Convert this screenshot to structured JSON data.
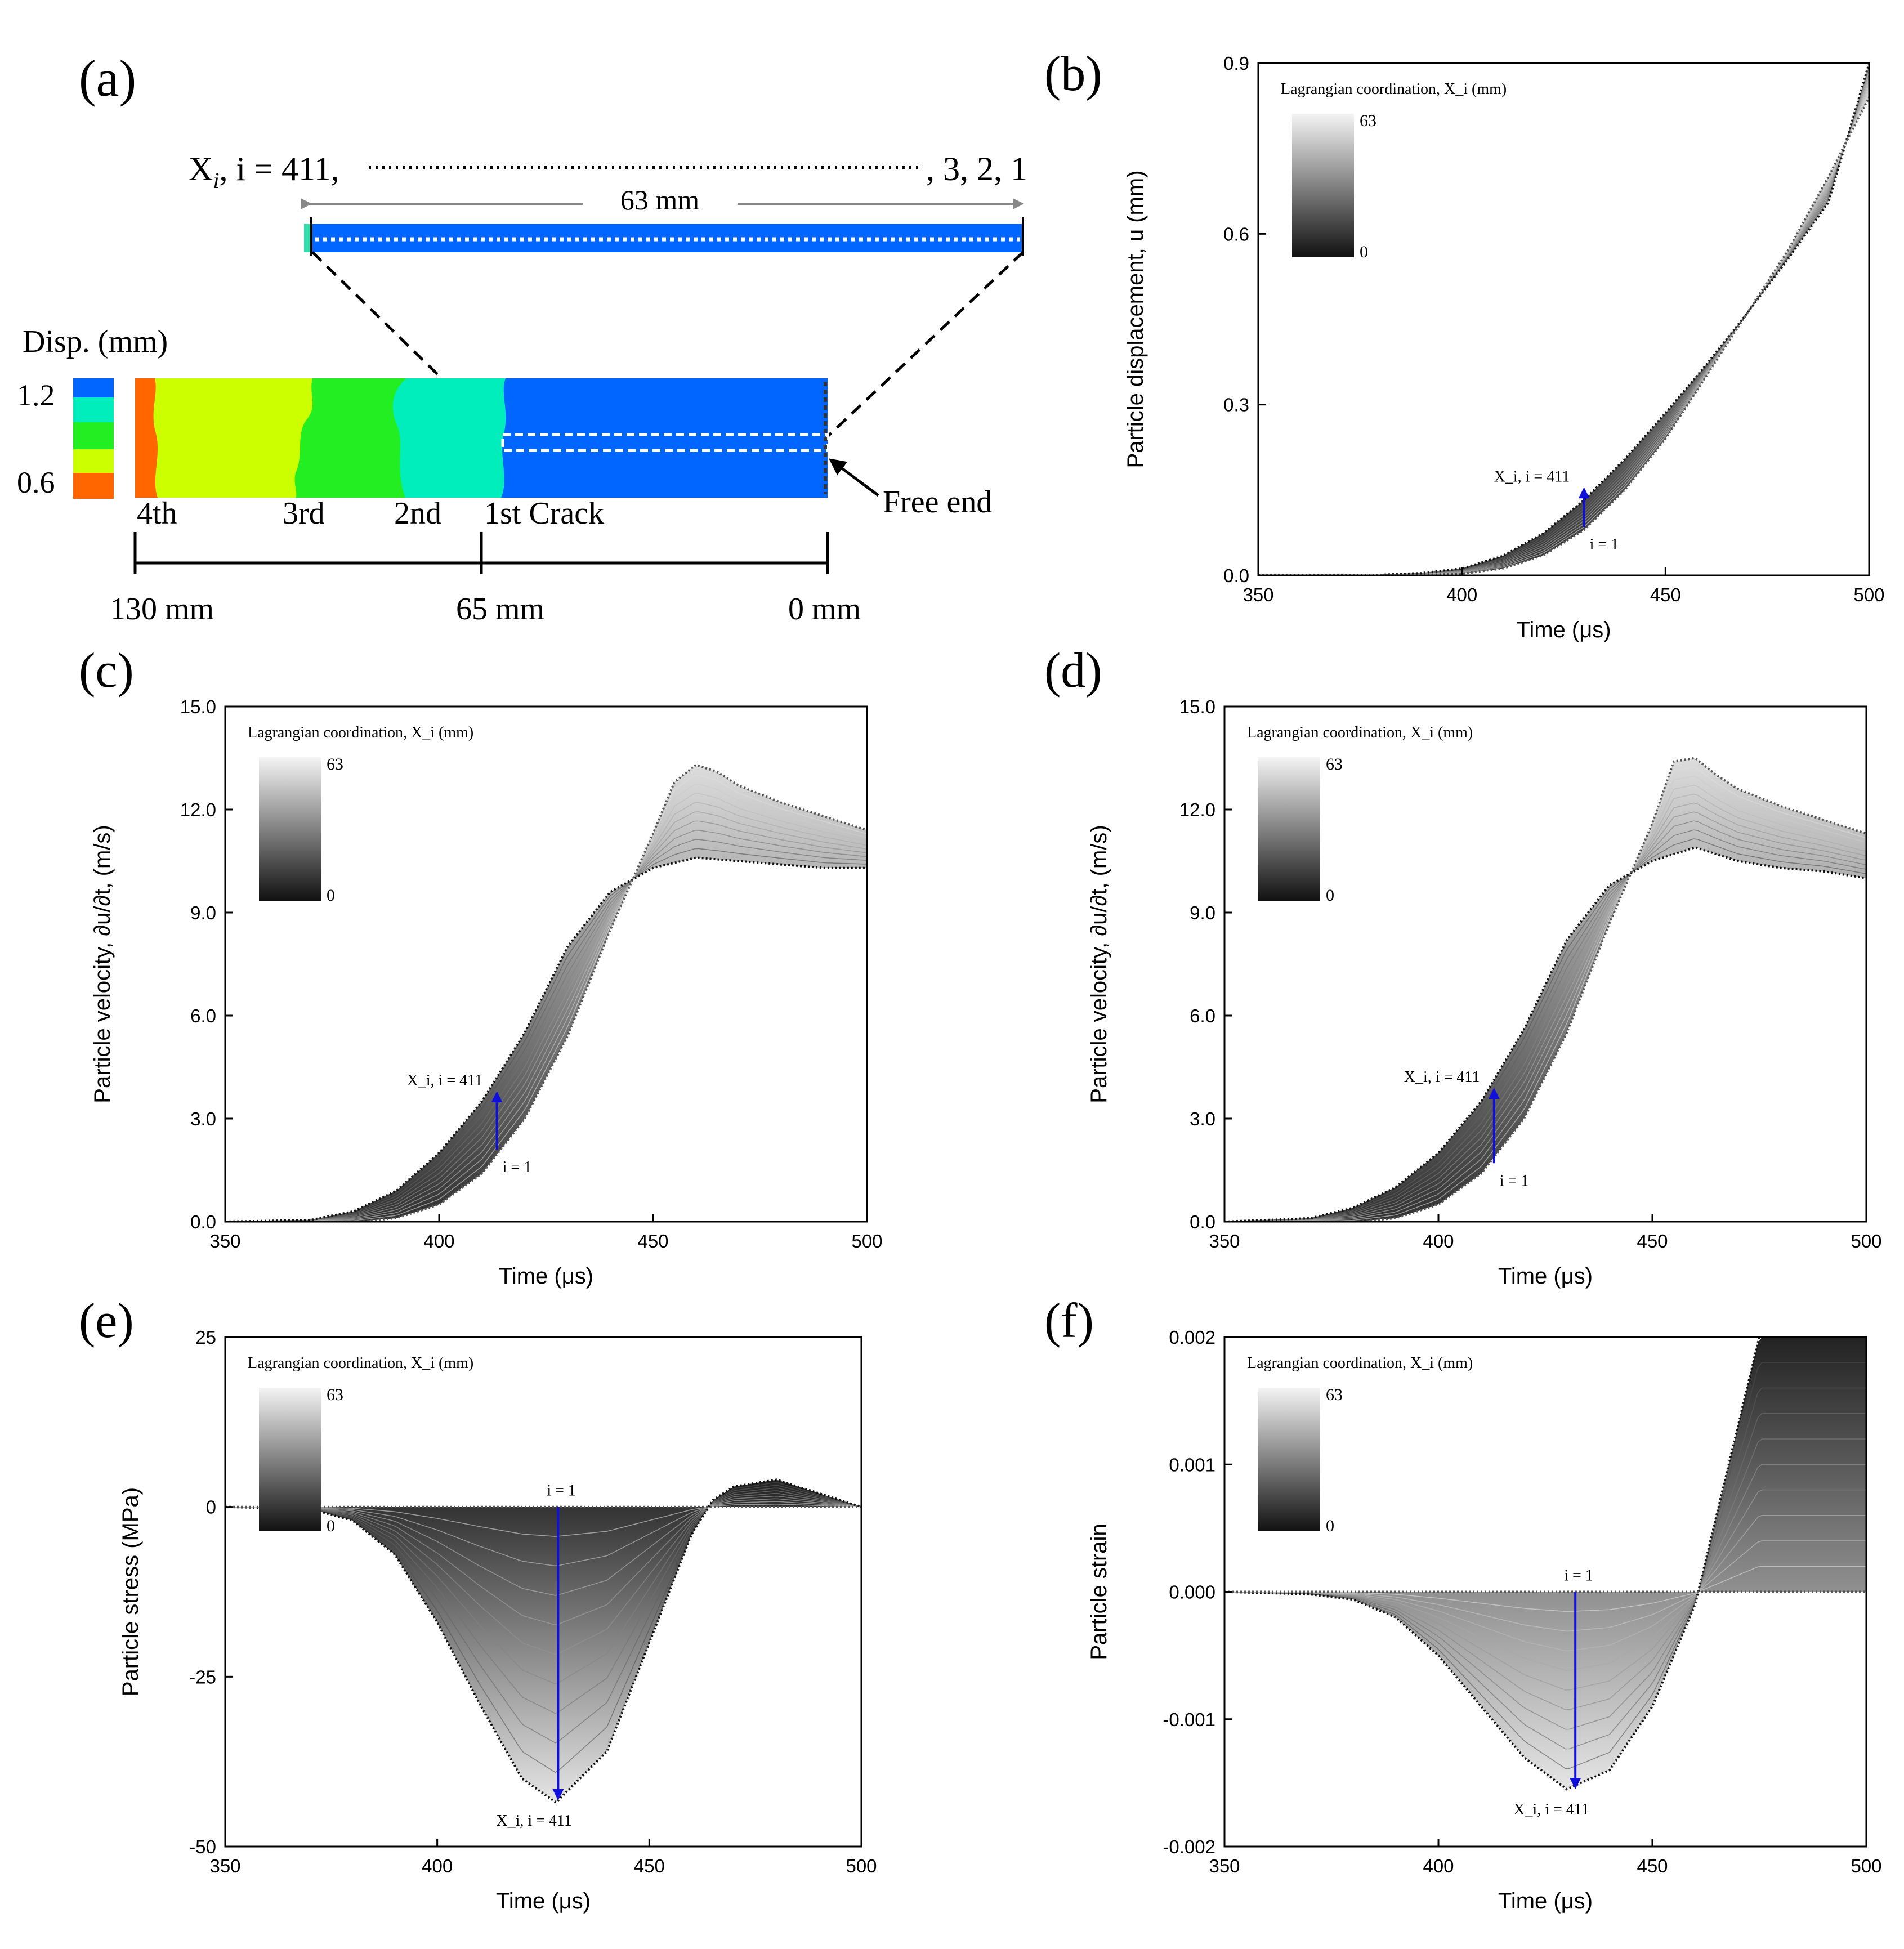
{
  "panels": {
    "a": {
      "label": "(a)",
      "xi_label_prefix": "X",
      "xi_label_sub": "i",
      "xi_label_rest": ", i = 411,",
      "xi_label_end": ", 3, 2, 1",
      "span_label": "63 mm",
      "legend_title": "Disp. (mm)",
      "legend_max": "1.2",
      "legend_min": "0.6",
      "cracks": [
        "4th",
        "3rd",
        "2nd",
        "1st Crack"
      ],
      "free_end": "Free end",
      "positions": [
        "130 mm",
        "65 mm",
        "0 mm"
      ],
      "colors": {
        "blue": "#0066ff",
        "cyan": "#00eebb",
        "green": "#22ee22",
        "yellow": "#ccff00",
        "orange": "#ff6600"
      }
    },
    "b": {
      "label": "(b)"
    },
    "c": {
      "label": "(c)"
    },
    "d": {
      "label": "(d)"
    },
    "e": {
      "label": "(e)"
    },
    "f": {
      "label": "(f)"
    }
  },
  "chart_data": [
    {
      "id": "b",
      "type": "line",
      "xlabel": "Time (μs)",
      "ylabel": "Particle displacement, u (mm)",
      "xlim": [
        350,
        500
      ],
      "ylim": [
        0,
        0.9
      ],
      "xticks": [
        "350",
        "400",
        "450",
        "500"
      ],
      "yticks": [
        "0.0",
        "0.3",
        "0.6",
        "0.9"
      ],
      "legend": {
        "title": "Lagrangian coordination, X_i (mm)",
        "max": "63",
        "min": "0"
      },
      "annotation": {
        "top": "X_i, i = 411",
        "bottom": "i = 1"
      },
      "series": [
        {
          "name": "i = 411",
          "x": [
            350,
            370,
            380,
            390,
            400,
            410,
            420,
            430,
            440,
            450,
            460,
            470,
            480,
            490,
            500
          ],
          "y": [
            0,
            0,
            0.001,
            0.004,
            0.012,
            0.034,
            0.074,
            0.132,
            0.204,
            0.285,
            0.37,
            0.46,
            0.555,
            0.655,
            0.9
          ]
        },
        {
          "name": "i = 1",
          "x": [
            350,
            380,
            390,
            400,
            410,
            420,
            430,
            440,
            450,
            460,
            470,
            480,
            490,
            500
          ],
          "y": [
            0,
            0,
            0.001,
            0.003,
            0.012,
            0.035,
            0.08,
            0.15,
            0.24,
            0.35,
            0.46,
            0.57,
            0.7,
            0.84
          ]
        }
      ]
    },
    {
      "id": "c",
      "type": "line",
      "xlabel": "Time (μs)",
      "ylabel": "Particle velocity, ∂u/∂t, (m/s)",
      "xlim": [
        350,
        500
      ],
      "ylim": [
        0,
        15
      ],
      "xticks": [
        "350",
        "400",
        "450",
        "500"
      ],
      "yticks": [
        "0.0",
        "3.0",
        "6.0",
        "9.0",
        "12.0",
        "15.0"
      ],
      "legend": {
        "title": "Lagrangian coordination, X_i (mm)",
        "max": "63",
        "min": "0"
      },
      "annotation": {
        "top": "X_i, i = 411",
        "bottom": "i = 1"
      },
      "series": [
        {
          "name": "i = 411",
          "x": [
            350,
            370,
            380,
            390,
            400,
            410,
            420,
            430,
            440,
            450,
            460,
            470,
            480,
            490,
            500
          ],
          "y": [
            0,
            0.05,
            0.3,
            0.9,
            2.0,
            3.5,
            5.5,
            8.0,
            9.6,
            10.3,
            10.6,
            10.5,
            10.4,
            10.3,
            10.3
          ]
        },
        {
          "name": "i = 1",
          "x": [
            350,
            380,
            390,
            400,
            410,
            420,
            430,
            440,
            450,
            455,
            460,
            465,
            470,
            480,
            490,
            500
          ],
          "y": [
            0,
            0,
            0.1,
            0.5,
            1.4,
            3.0,
            5.4,
            8.5,
            11.3,
            12.8,
            13.3,
            13.1,
            12.7,
            12.2,
            11.8,
            11.4
          ]
        }
      ]
    },
    {
      "id": "d",
      "type": "line",
      "xlabel": "Time (μs)",
      "ylabel": "Particle velocity, ∂u/∂t, (m/s)",
      "xlim": [
        350,
        500
      ],
      "ylim": [
        0,
        15
      ],
      "xticks": [
        "350",
        "400",
        "450",
        "500"
      ],
      "yticks": [
        "0.0",
        "3.0",
        "6.0",
        "9.0",
        "12.0",
        "15.0"
      ],
      "legend": {
        "title": "Lagrangian coordination, X_i (mm)",
        "max": "63",
        "min": "0"
      },
      "annotation": {
        "top": "X_i, i = 411",
        "bottom": "i = 1"
      },
      "series": [
        {
          "name": "i = 411",
          "x": [
            350,
            370,
            380,
            390,
            400,
            410,
            420,
            430,
            440,
            450,
            460,
            470,
            480,
            490,
            500
          ],
          "y": [
            0,
            0.1,
            0.4,
            1.0,
            2.0,
            3.5,
            5.6,
            8.2,
            9.8,
            10.5,
            10.9,
            10.5,
            10.3,
            10.2,
            10.0
          ]
        },
        {
          "name": "i = 1",
          "x": [
            350,
            380,
            390,
            400,
            410,
            420,
            430,
            440,
            450,
            455,
            460,
            465,
            470,
            480,
            490,
            500
          ],
          "y": [
            0,
            0,
            0.1,
            0.5,
            1.4,
            3.0,
            5.5,
            8.7,
            11.6,
            13.4,
            13.5,
            13.0,
            12.6,
            12.1,
            11.7,
            11.3
          ]
        }
      ]
    },
    {
      "id": "e",
      "type": "area",
      "xlabel": "Time (μs)",
      "ylabel": "Particle stress (MPa)",
      "xlim": [
        350,
        500
      ],
      "ylim": [
        -50,
        25
      ],
      "xticks": [
        "350",
        "400",
        "450",
        "500"
      ],
      "yticks": [
        "-50",
        "-25",
        "0",
        "25"
      ],
      "legend": {
        "title": "Lagrangian coordination, X_i (mm)",
        "max": "63",
        "min": "0"
      },
      "annotation": {
        "top": "i = 1",
        "bottom": "X_i, i = 411"
      },
      "series": [
        {
          "name": "i = 411",
          "x": [
            350,
            370,
            380,
            390,
            400,
            410,
            420,
            428,
            440,
            450,
            460,
            465,
            470,
            480,
            490,
            500
          ],
          "y": [
            0,
            -0.3,
            -2,
            -7,
            -17,
            -29,
            -40,
            -43.5,
            -36,
            -20,
            -4,
            1,
            3,
            4,
            2,
            0
          ]
        },
        {
          "name": "i = 1",
          "x": [
            350,
            500
          ],
          "y": [
            0,
            0
          ]
        }
      ]
    },
    {
      "id": "f",
      "type": "area",
      "xlabel": "Time (μs)",
      "ylabel": "Particle strain",
      "xlim": [
        350,
        500
      ],
      "ylim": [
        -0.002,
        0.002
      ],
      "xticks": [
        "350",
        "400",
        "450",
        "500"
      ],
      "yticks": [
        "-0.002",
        "-0.001",
        "0.000",
        "0.001",
        "0.002"
      ],
      "legend": {
        "title": "Lagrangian coordination, X_i (mm)",
        "max": "63",
        "min": "0"
      },
      "annotation": {
        "top": "i = 1",
        "bottom": "X_i, i = 411"
      },
      "series": [
        {
          "name": "i = 411",
          "x": [
            350,
            370,
            380,
            390,
            400,
            410,
            420,
            430,
            440,
            450,
            460,
            465,
            470,
            475
          ],
          "y": [
            0,
            -2e-05,
            -6e-05,
            -0.0002,
            -0.0005,
            -0.0009,
            -0.0013,
            -0.00155,
            -0.0014,
            -0.0009,
            -0.0001,
            0.0006,
            0.0013,
            0.002
          ]
        },
        {
          "name": "i = 1",
          "x": [
            350,
            500
          ],
          "y": [
            0,
            0
          ]
        }
      ]
    }
  ]
}
